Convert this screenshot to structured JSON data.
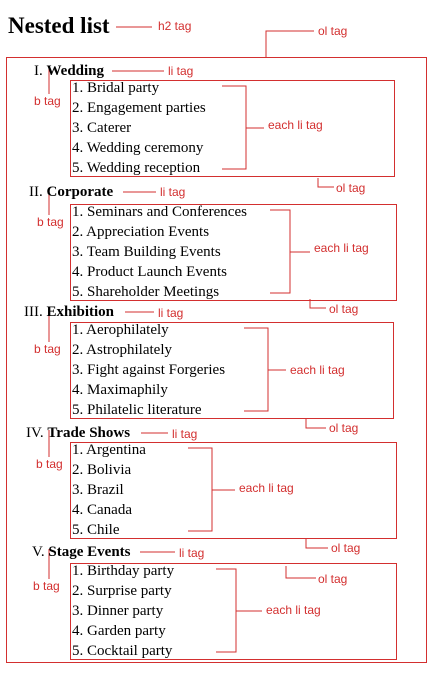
{
  "title": "Nested list",
  "annotations": {
    "h2": "h2 tag",
    "ol": "ol tag",
    "li": "li tag",
    "b": "b tag",
    "each_li": "each li tag"
  },
  "sections": [
    {
      "numeral": "I.",
      "name": "Wedding",
      "items": [
        "1. Bridal party",
        "2. Engagement parties",
        "3. Caterer",
        "4. Wedding ceremony",
        "5. Wedding reception"
      ]
    },
    {
      "numeral": "II.",
      "name": "Corporate",
      "items": [
        "1. Seminars and Conferences",
        "2. Appreciation Events",
        "3. Team Building Events",
        "4. Product Launch Events",
        "5. Shareholder Meetings"
      ]
    },
    {
      "numeral": "III.",
      "name": "Exhibition",
      "items": [
        "1. Aerophilately",
        "2. Astrophilately",
        "3. Fight against Forgeries",
        "4. Maximaphily",
        "5. Philatelic literature"
      ]
    },
    {
      "numeral": "IV.",
      "name": "Trade Shows",
      "items": [
        "1. Argentina",
        "2. Bolivia",
        "3. Brazil",
        "4. Canada",
        "5. Chile"
      ]
    },
    {
      "numeral": "V.",
      "name": "Stage Events",
      "items": [
        "1. Birthday party",
        "2. Surprise party",
        "3. Dinner party",
        "4. Garden party",
        "5. Cocktail party"
      ]
    }
  ]
}
